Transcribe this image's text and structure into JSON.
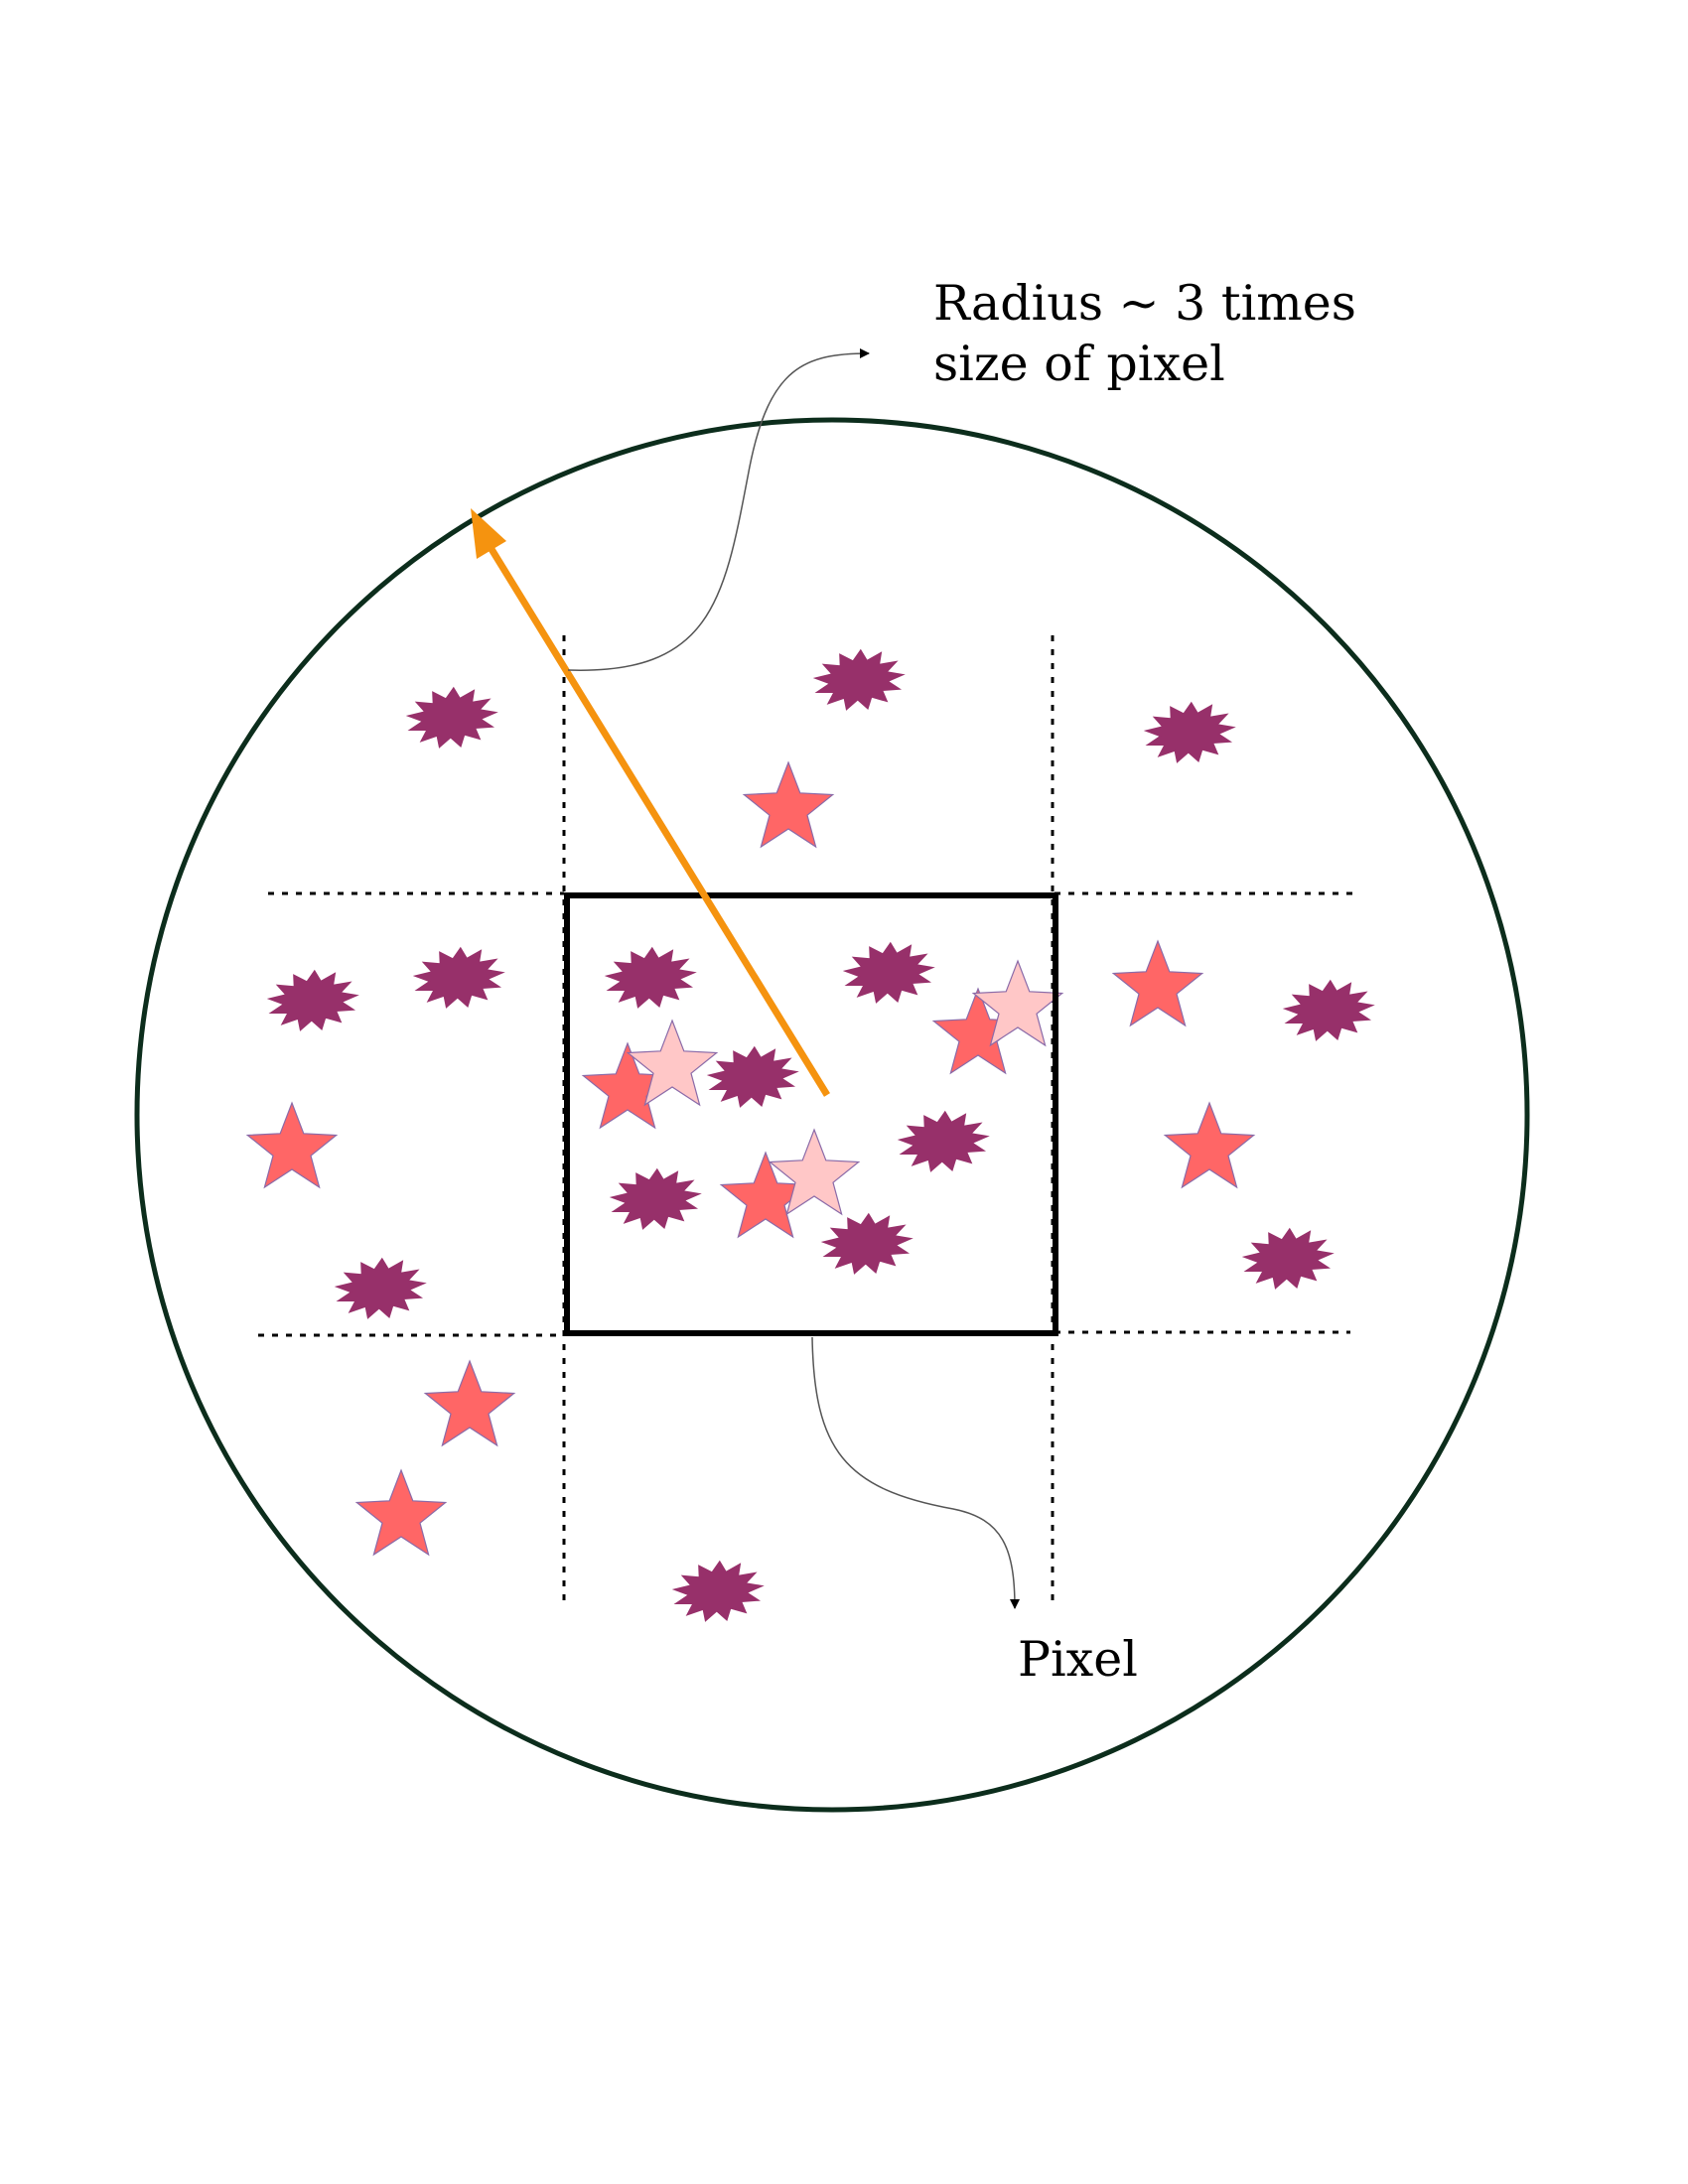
{
  "annotations": {
    "radius_line1": "Radius ~ 3 times",
    "radius_line2": "size of pixel",
    "pixel": "Pixel"
  },
  "colors": {
    "circle_stroke": "#0c2d1c",
    "radius_arrow": "#f5930f",
    "pixel_box_stroke": "#000000",
    "grid_lines": "#000000",
    "star": "#ff6666",
    "star_faded": "#ffc7c7",
    "burst": "#97306a",
    "leader_line": "#555555"
  },
  "legend_shapes": {
    "star": "five-point-star-icon",
    "faded_star": "faded-five-point-star-icon",
    "burst": "burst-shape-icon"
  }
}
